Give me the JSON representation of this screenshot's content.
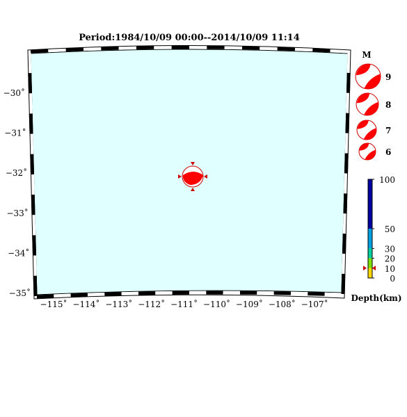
{
  "title": "Period:1984/10/09 00:00--2014/10/09 11:14",
  "map": {
    "ocean_color": "#e0ffff",
    "frame_colors": [
      "#000000",
      "#ffffff"
    ],
    "lat_ticks": [
      {
        "value": -30,
        "label": "−30˚"
      },
      {
        "value": -31,
        "label": "−31˚"
      },
      {
        "value": -32,
        "label": "−32˚"
      },
      {
        "value": -33,
        "label": "−33˚"
      },
      {
        "value": -34,
        "label": "−34˚"
      },
      {
        "value": -35,
        "label": "−35˚"
      }
    ],
    "lon_ticks": [
      {
        "value": -115,
        "label": "−115˚"
      },
      {
        "value": -114,
        "label": "−114˚"
      },
      {
        "value": -113,
        "label": "−113˚"
      },
      {
        "value": -112,
        "label": "−112˚"
      },
      {
        "value": -111,
        "label": "−111˚"
      },
      {
        "value": -110,
        "label": "−110˚"
      },
      {
        "value": -109,
        "label": "−109˚"
      },
      {
        "value": -108,
        "label": "−108˚"
      },
      {
        "value": -107,
        "label": "−107˚"
      }
    ],
    "event": {
      "lon": -110.9,
      "lat": -32.1,
      "depth_km": 10,
      "color": "#ff0000",
      "marker_icon": "triangle-marker-icon"
    }
  },
  "magnitude_legend": {
    "header": "M",
    "items": [
      {
        "label": "9"
      },
      {
        "label": "8"
      },
      {
        "label": "7"
      },
      {
        "label": "6"
      }
    ]
  },
  "depth_scale": {
    "label": "Depth(km)",
    "ticks": [
      "100",
      "50",
      "30",
      "20",
      "10",
      "0"
    ],
    "bands": [
      {
        "from": 0,
        "to": 10,
        "color": "#ffd700"
      },
      {
        "from": 10,
        "to": 20,
        "color": "#7fe000"
      },
      {
        "from": 20,
        "to": 30,
        "color": "#00d0a0"
      },
      {
        "from": 30,
        "to": 50,
        "color": "#00a0e0"
      },
      {
        "from": 50,
        "to": 100,
        "color": "#0000a0"
      }
    ],
    "marker_value": 10,
    "marker_color": "#cc0000"
  }
}
